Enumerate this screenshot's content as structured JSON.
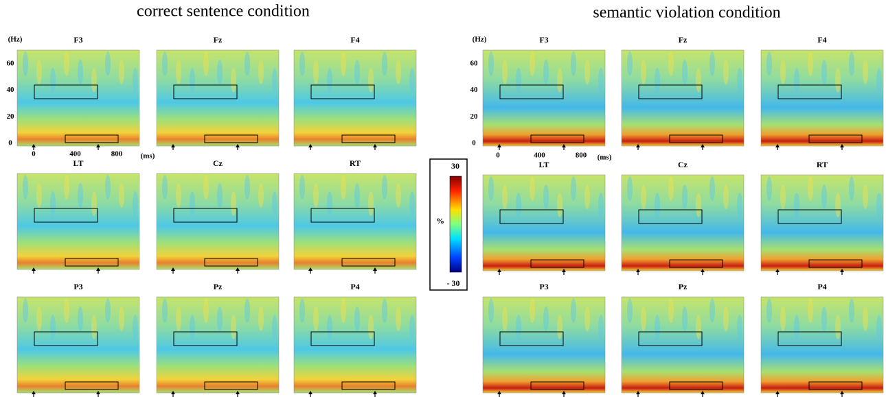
{
  "groups": [
    {
      "title": "correct sentence condition",
      "y_unit": "(Hz)",
      "yticks": [
        60,
        40,
        20,
        0
      ],
      "xticks": [
        0,
        400,
        800
      ],
      "x_unit": "(ms)",
      "panels": [
        "F3",
        "Fz",
        "F4",
        "LT",
        "Cz",
        "RT",
        "P3",
        "Pz",
        "P4"
      ]
    },
    {
      "title": "semantic violation condition",
      "y_unit": "(Hz)",
      "yticks": [
        60,
        40,
        20,
        0
      ],
      "xticks": [
        0,
        400,
        800
      ],
      "x_unit": "(ms)",
      "panels": [
        "F3",
        "Fz",
        "F4",
        "LT",
        "Cz",
        "RT",
        "P3",
        "Pz",
        "P4"
      ]
    }
  ],
  "colorbar": {
    "max": "30",
    "unit": "%",
    "min": "- 30"
  }
}
